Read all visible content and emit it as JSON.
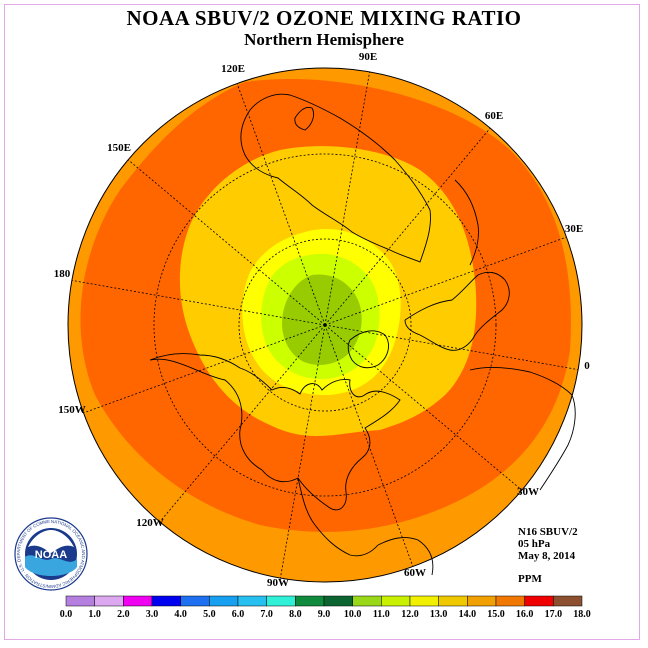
{
  "title": "NOAA SBUV/2 OZONE MIXING RATIO",
  "subtitle": "Northern Hemisphere",
  "longitude_labels": [
    "90E",
    "60E",
    "30E",
    "0",
    "30W",
    "60W",
    "90W",
    "120W",
    "150W",
    "180",
    "150E",
    "120E"
  ],
  "info": {
    "satellite": "N16 SBUV/2",
    "level": "05 hPa",
    "date": "May 8, 2014",
    "unit": "PPM"
  },
  "logo": {
    "text": "NOAA",
    "ring_text": "NATIONAL OCEANIC AND ATMOSPHERIC ADMINISTRATION · U.S. DEPARTMENT OF COMMERCE"
  },
  "colorbar": {
    "ticks": [
      "0.0",
      "1.0",
      "2.0",
      "3.0",
      "4.0",
      "5.0",
      "6.0",
      "7.0",
      "8.0",
      "9.0",
      "10.0",
      "11.0",
      "12.0",
      "13.0",
      "14.0",
      "15.0",
      "16.0",
      "17.0",
      "18.0"
    ],
    "colors": [
      "#b57fe0",
      "#dca8f0",
      "#f000f0",
      "#0000f0",
      "#1e70f0",
      "#18a0f0",
      "#28c0f0",
      "#30f0d8",
      "#108a3c",
      "#0c6430",
      "#98d818",
      "#c8f000",
      "#f0f000",
      "#f0c800",
      "#f0a000",
      "#f07800",
      "#f00000",
      "#8c5030"
    ]
  },
  "map_colors": {
    "outer": "#ff9900",
    "band": "#ff6600",
    "inner": "#ffcc00",
    "yellow": "#ffff00",
    "lime": "#ccff00",
    "green": "#99cc00"
  }
}
